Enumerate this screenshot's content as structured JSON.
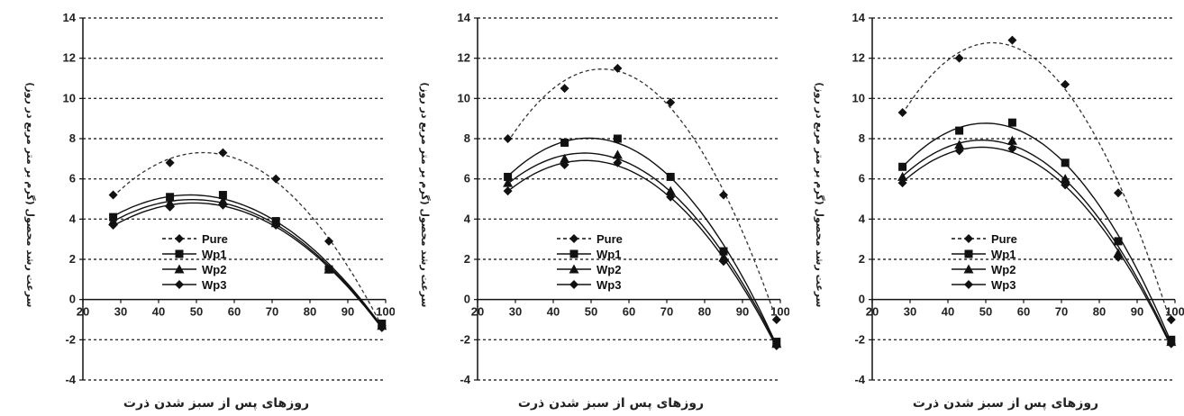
{
  "chart_data": [
    {
      "type": "line",
      "xlabel": "روزهای پس از سبز شدن ذرت",
      "ylabel": "سرعت رشد محصول (گرم بر متر مربع در روز)",
      "xlim": [
        20,
        100
      ],
      "ylim": [
        -4,
        14
      ],
      "xticks": [
        20,
        30,
        40,
        50,
        60,
        70,
        80,
        90,
        100
      ],
      "yticks": [
        -4,
        -2,
        0,
        2,
        4,
        6,
        8,
        10,
        12,
        14
      ],
      "grid": "horizontal-dotted",
      "legend": "center-left",
      "series": [
        {
          "name": "Pure",
          "marker": "diamond",
          "dash": true,
          "x": [
            28,
            43,
            57,
            71,
            85,
            99
          ],
          "y": [
            5.2,
            6.8,
            7.3,
            6.0,
            2.9,
            -1.3
          ]
        },
        {
          "name": "Wp1",
          "marker": "square",
          "dash": false,
          "x": [
            28,
            43,
            57,
            71,
            85,
            99
          ],
          "y": [
            4.1,
            5.1,
            5.2,
            3.9,
            1.5,
            -1.2
          ]
        },
        {
          "name": "Wp2",
          "marker": "triangle",
          "dash": false,
          "x": [
            28,
            43,
            57,
            71,
            85,
            99
          ],
          "y": [
            3.9,
            4.8,
            4.9,
            3.8,
            1.5,
            -1.3
          ]
        },
        {
          "name": "Wp3",
          "marker": "diamond",
          "dash": false,
          "x": [
            28,
            43,
            57,
            71,
            85,
            99
          ],
          "y": [
            3.7,
            4.6,
            4.7,
            3.7,
            1.5,
            -1.4
          ]
        }
      ]
    },
    {
      "type": "line",
      "xlabel": "روزهای پس از سبز شدن ذرت",
      "ylabel": "سرعت رشد محصول (گرم بر متر مربع در روز)",
      "xlim": [
        20,
        100
      ],
      "ylim": [
        -4,
        14
      ],
      "xticks": [
        20,
        30,
        40,
        50,
        60,
        70,
        80,
        90,
        100
      ],
      "yticks": [
        -4,
        -2,
        0,
        2,
        4,
        6,
        8,
        10,
        12,
        14
      ],
      "grid": "horizontal-dotted",
      "legend": "center-left",
      "series": [
        {
          "name": "Pure",
          "marker": "diamond",
          "dash": true,
          "x": [
            28,
            43,
            57,
            71,
            85,
            99
          ],
          "y": [
            8.0,
            10.5,
            11.5,
            9.8,
            5.2,
            -1.0
          ]
        },
        {
          "name": "Wp1",
          "marker": "square",
          "dash": false,
          "x": [
            28,
            43,
            57,
            71,
            85,
            99
          ],
          "y": [
            6.1,
            7.8,
            8.0,
            6.1,
            2.4,
            -2.1
          ]
        },
        {
          "name": "Wp2",
          "marker": "triangle",
          "dash": false,
          "x": [
            28,
            43,
            57,
            71,
            85,
            99
          ],
          "y": [
            5.8,
            7.0,
            7.2,
            5.4,
            2.1,
            -2.2
          ]
        },
        {
          "name": "Wp3",
          "marker": "diamond",
          "dash": false,
          "x": [
            28,
            43,
            57,
            71,
            85,
            99
          ],
          "y": [
            5.4,
            6.7,
            6.8,
            5.1,
            1.9,
            -2.3
          ]
        }
      ]
    },
    {
      "type": "line",
      "xlabel": "روزهای پس از سبز شدن ذرت",
      "ylabel": "سرعت رشد محصول (گرم بر متر مربع در روز)",
      "xlim": [
        20,
        100
      ],
      "ylim": [
        -4,
        14
      ],
      "xticks": [
        20,
        30,
        40,
        50,
        60,
        70,
        80,
        90,
        100
      ],
      "yticks": [
        -4,
        -2,
        0,
        2,
        4,
        6,
        8,
        10,
        12,
        14
      ],
      "grid": "horizontal-dotted",
      "legend": "center-left",
      "series": [
        {
          "name": "Pure",
          "marker": "diamond",
          "dash": true,
          "x": [
            28,
            43,
            57,
            71,
            85,
            99
          ],
          "y": [
            9.3,
            12.0,
            12.9,
            10.7,
            5.3,
            -1.0
          ]
        },
        {
          "name": "Wp1",
          "marker": "square",
          "dash": false,
          "x": [
            28,
            43,
            57,
            71,
            85,
            99
          ],
          "y": [
            6.6,
            8.4,
            8.8,
            6.8,
            2.9,
            -2.0
          ]
        },
        {
          "name": "Wp2",
          "marker": "triangle",
          "dash": false,
          "x": [
            28,
            43,
            57,
            71,
            85,
            99
          ],
          "y": [
            6.1,
            7.7,
            7.9,
            6.0,
            2.3,
            -2.1
          ]
        },
        {
          "name": "Wp3",
          "marker": "diamond",
          "dash": false,
          "x": [
            28,
            43,
            57,
            71,
            85,
            99
          ],
          "y": [
            5.8,
            7.4,
            7.5,
            5.7,
            2.1,
            -2.2
          ]
        }
      ]
    }
  ]
}
